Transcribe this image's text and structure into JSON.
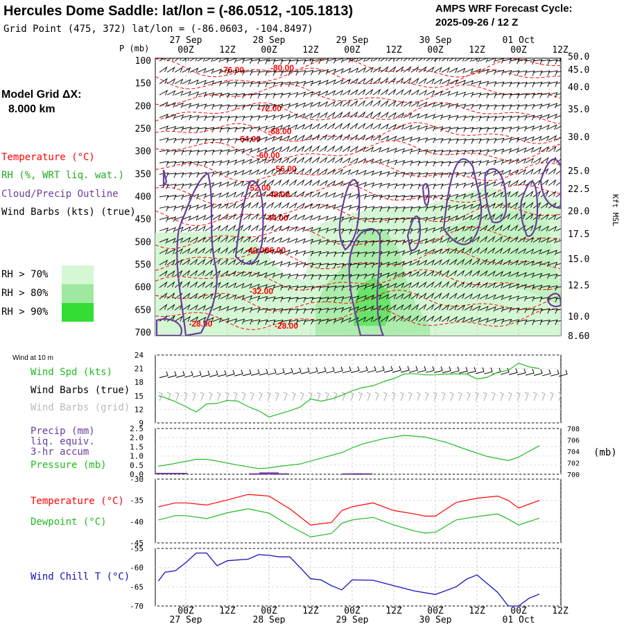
{
  "header": {
    "title": "Hercules Dome Saddle:  lat/lon = (-86.0512, -105.1813)",
    "grid_point": "Grid Point (475, 372) lat/lon = (-86.0603, -104.8497)",
    "cycle_line1": "AMPS WRF Forecast Cycle:",
    "cycle_line2": "2025-09-26 / 12  Z"
  },
  "model_grid": {
    "label": "Model Grid ΔX:",
    "value": "8.000 km"
  },
  "time_axis": {
    "hours": [
      "00Z",
      "12Z",
      "00Z",
      "12Z",
      "00Z",
      "12Z",
      "00Z",
      "12Z",
      "00Z",
      "12Z"
    ],
    "dates": [
      "27 Sep",
      "28 Sep",
      "29 Sep",
      "30 Sep",
      "01 Oct"
    ]
  },
  "legends": {
    "temperature": "Temperature (°C)",
    "rh": "RH (%, WRT liq. wat.)",
    "cloud": "Cloud/Precip Outline",
    "wind_barbs": "Wind Barbs (kts) (true)",
    "rh70": "RH > 70%",
    "rh80": "RH > 80%",
    "rh90": "RH > 90%",
    "wind10m": "Wind at 10 m",
    "wind_spd": "Wind Spd (kts)",
    "wind_barbs_true": "Wind Barbs (true)",
    "wind_barbs_grid": "Wind Barbs (grid)",
    "precip1": "Precip (mm)",
    "precip2": "liq. equiv.",
    "precip3": "3-hr accum",
    "pressure": "Pressure (mb)",
    "pressure_unit": "(mb)",
    "temp2m": "Temperature (°C)",
    "dewpoint": "Dewpoint (°C)",
    "windchill": "Wind Chill T (°C)"
  },
  "colors": {
    "temperature": "#ff0000",
    "rh": "#22bb22",
    "cloud": "#6a3d9a",
    "windchill": "#1010c0",
    "rh70": "#d4f7d4",
    "rh80": "#9fe89f",
    "rh90": "#33dd33"
  },
  "chart_data": [
    {
      "type": "heatmap",
      "title": "",
      "ylabel": "P (mb)",
      "y2label": "Kft MSL",
      "pressure_levels": [
        "100",
        "150",
        "200",
        "250",
        "300",
        "350",
        "400",
        "450",
        "500",
        "550",
        "600",
        "650",
        "700"
      ],
      "height_labels": [
        "50.0",
        "45.0",
        "40.0",
        "35.0",
        "30.0",
        "25.0",
        "22.5",
        "20.0",
        "17.5",
        "15.0",
        "12.5",
        "10.0",
        "8.60"
      ],
      "temperature_contour_labels": [
        {
          "label": "-76.00",
          "t": 0.5,
          "p": 120
        },
        {
          "label": "-80.00",
          "t": 1.1,
          "p": 115
        },
        {
          "label": "-72.00",
          "t": 0.95,
          "p": 205
        },
        {
          "label": "-68.00",
          "t": 1.07,
          "p": 255
        },
        {
          "label": "-64.00",
          "t": 0.7,
          "p": 272
        },
        {
          "label": "-60.00",
          "t": 0.93,
          "p": 308
        },
        {
          "label": "-56.00",
          "t": 1.13,
          "p": 338
        },
        {
          "label": "-52.00",
          "t": 0.82,
          "p": 380
        },
        {
          "label": "-48.00",
          "t": 1.05,
          "p": 395
        },
        {
          "label": "-44.00",
          "t": 1.03,
          "p": 447
        },
        {
          "label": "-40.00",
          "t": 0.8,
          "p": 518
        },
        {
          "label": "-36.00",
          "t": 1.0,
          "p": 518
        },
        {
          "label": "-32.00",
          "t": 0.85,
          "p": 608
        },
        {
          "label": "-28.00",
          "t": 0.12,
          "p": 680
        },
        {
          "label": "-28.00",
          "t": 1.15,
          "p": 685
        }
      ]
    },
    {
      "type": "line",
      "title": "",
      "x_unit": "days from 27 Sep 00Z",
      "ylim": [
        9,
        24
      ],
      "yticks": [
        "9",
        "12",
        "15",
        "18",
        "21",
        "24"
      ],
      "series": [
        {
          "name": "Wind Spd (kts)",
          "x": [
            -0.33,
            -0.25,
            -0.125,
            0,
            0.125,
            0.25,
            0.375,
            0.5,
            0.625,
            0.75,
            0.875,
            1.0,
            1.125,
            1.25,
            1.375,
            1.5,
            1.625,
            1.75,
            1.875,
            2.0,
            2.125,
            2.25,
            2.375,
            2.5,
            2.625,
            2.75,
            2.875,
            3.0,
            3.125,
            3.25,
            3.375,
            3.5,
            3.625,
            3.75,
            3.875,
            4.0,
            4.125,
            4.25
          ],
          "values": [
            15.0,
            14.6,
            13.7,
            12.6,
            11.4,
            13.2,
            13.3,
            14.0,
            13.8,
            12.6,
            11.7,
            10.3,
            11.0,
            11.7,
            12.5,
            14.3,
            13.8,
            14.3,
            15.1,
            16.1,
            16.8,
            17.2,
            18.1,
            18.8,
            19.8,
            19.9,
            19.6,
            19.6,
            19.8,
            19.8,
            19.8,
            18.7,
            19.1,
            20.2,
            20.6,
            22.2,
            21.4,
            21.0
          ]
        }
      ]
    },
    {
      "type": "line",
      "title": "",
      "x_unit": "days from 27 Sep 00Z",
      "ylim": [
        0,
        2.5
      ],
      "yticks": [
        "0.0",
        "0.5",
        "1.0",
        "1.5",
        "2.0",
        "2.5"
      ],
      "y2lim": [
        700,
        708
      ],
      "y2ticks": [
        "700",
        "702",
        "704",
        "706",
        "708"
      ],
      "series": [
        {
          "name": "Pressure (mb)",
          "axis": "right",
          "x": [
            -0.33,
            -0.125,
            0.125,
            0.25,
            0.375,
            0.625,
            0.875,
            1.0,
            1.125,
            1.375,
            1.625,
            1.875,
            2.0,
            2.125,
            2.375,
            2.625,
            2.875,
            3.125,
            3.375,
            3.625,
            3.875,
            4.0,
            4.125,
            4.25
          ],
          "values": [
            701.4,
            701.9,
            702.6,
            702.6,
            702.3,
            701.6,
            701.0,
            701.1,
            701.4,
            701.8,
            702.8,
            703.8,
            704.6,
            705.3,
            706.2,
            706.8,
            706.5,
            705.6,
            704.3,
            703.1,
            702.4,
            703.0,
            704.0,
            705.0
          ]
        },
        {
          "name": "Precip (mm)",
          "axis": "left",
          "type": "bar",
          "x": [
            0.875,
            1.0,
            1.125,
            2.0,
            2.125
          ],
          "values": [
            0.05,
            0.1,
            0.05,
            0.05,
            0.05
          ]
        }
      ]
    },
    {
      "type": "line",
      "title": "",
      "x_unit": "days from 27 Sep 00Z",
      "ylim": [
        -45,
        -30
      ],
      "yticks": [
        "-30",
        "-35",
        "-40",
        "-45"
      ],
      "series": [
        {
          "name": "Temperature (°C)",
          "x": [
            -0.33,
            -0.125,
            0,
            0.25,
            0.5,
            0.75,
            1.0,
            1.25,
            1.5,
            1.75,
            1.875,
            2.0,
            2.25,
            2.5,
            2.75,
            2.875,
            3.0,
            3.25,
            3.5,
            3.75,
            3.875,
            4.0,
            4.25
          ],
          "values": [
            -36.5,
            -35.6,
            -35.6,
            -36.1,
            -34.9,
            -33.6,
            -34.0,
            -37.0,
            -40.8,
            -40.2,
            -37.4,
            -36.5,
            -35.6,
            -37.4,
            -38.2,
            -38.7,
            -38.7,
            -35.5,
            -34.5,
            -34.0,
            -35.0,
            -36.8,
            -35.0
          ]
        },
        {
          "name": "Dewpoint (°C)",
          "x": [
            -0.33,
            -0.125,
            0,
            0.25,
            0.5,
            0.75,
            1.0,
            1.25,
            1.5,
            1.75,
            1.875,
            2.0,
            2.25,
            2.5,
            2.75,
            2.875,
            3.0,
            3.25,
            3.5,
            3.75,
            3.875,
            4.0,
            4.25
          ],
          "values": [
            -39.6,
            -38.6,
            -38.6,
            -39.3,
            -37.9,
            -37.0,
            -38.0,
            -41.0,
            -43.6,
            -42.8,
            -40.4,
            -39.6,
            -39.0,
            -40.8,
            -42.2,
            -42.7,
            -42.5,
            -39.6,
            -38.8,
            -38.2,
            -39.4,
            -40.8,
            -39.2
          ]
        }
      ]
    },
    {
      "type": "line",
      "title": "",
      "x_unit": "days from 27 Sep 00Z",
      "ylim": [
        -70,
        -55
      ],
      "yticks": [
        "-55",
        "-60",
        "-65",
        "-70"
      ],
      "series": [
        {
          "name": "Wind Chill T (°C)",
          "x": [
            -0.33,
            -0.25,
            -0.125,
            0,
            0.125,
            0.25,
            0.375,
            0.5,
            0.75,
            0.875,
            1.0,
            1.125,
            1.25,
            1.375,
            1.5,
            1.625,
            1.75,
            1.875,
            2.0,
            2.25,
            2.5,
            2.75,
            3.0,
            3.25,
            3.375,
            3.5,
            3.75,
            3.875,
            4.0,
            4.125,
            4.25
          ],
          "values": [
            -63.5,
            -61.2,
            -60.8,
            -58.7,
            -56.2,
            -56.2,
            -59.5,
            -58.2,
            -57.8,
            -56.6,
            -56.8,
            -57.2,
            -57.2,
            -60.0,
            -62.9,
            -63.2,
            -64.7,
            -65.8,
            -63.2,
            -63.3,
            -64.7,
            -66.1,
            -67.0,
            -65.0,
            -63.0,
            -61.9,
            -66.5,
            -70.0,
            -70.0,
            -68.0,
            -66.9
          ]
        }
      ]
    }
  ]
}
